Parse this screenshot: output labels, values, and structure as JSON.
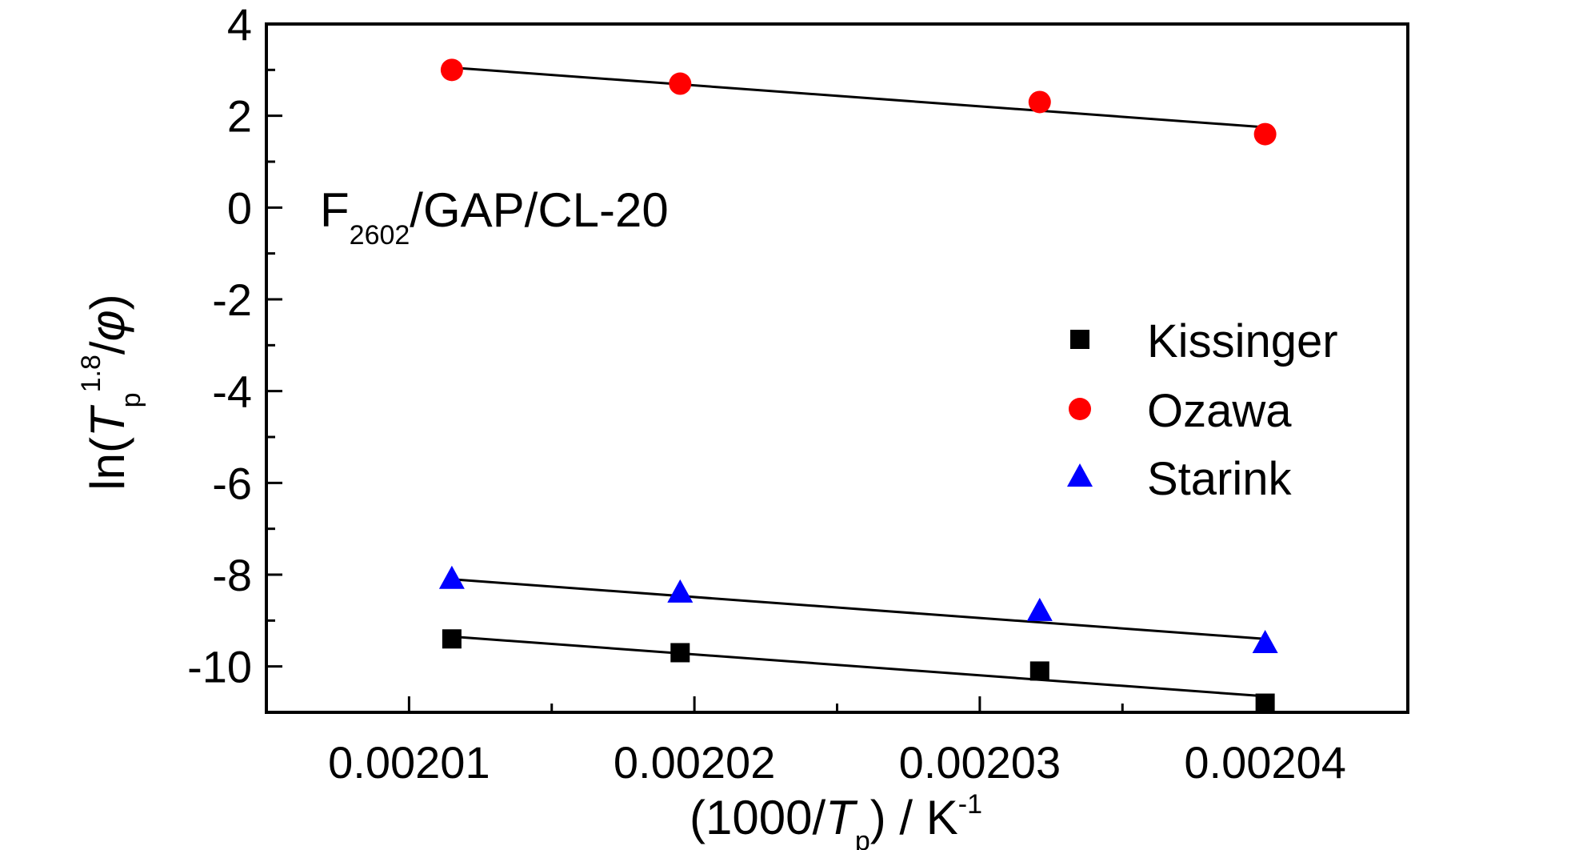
{
  "chart_data": {
    "type": "scatter",
    "annotation": {
      "main": "F",
      "sub": "2602",
      "rest": "/GAP/CL-20"
    },
    "xlabel": {
      "pre": "(1000/",
      "italic": "T",
      "sub": "p",
      "post": ") / K",
      "sup": "-1"
    },
    "ylabel": {
      "pre": "ln(",
      "italic": "T",
      "sub": "p",
      "sup": "1.8",
      "slash": "/",
      "phi": "φ",
      "post": ")"
    },
    "xlim": [
      0.002005,
      0.002045
    ],
    "ylim": [
      -11,
      4
    ],
    "x_ticks": [
      0.00201,
      0.00202,
      0.00203,
      0.00204
    ],
    "x_tick_labels": [
      "0.00201",
      "0.00202",
      "0.00203",
      "0.00204"
    ],
    "y_ticks": [
      -10,
      -8,
      -6,
      -4,
      -2,
      0,
      2,
      4
    ],
    "y_tick_labels": [
      "-10",
      "-8",
      "-6",
      "-4",
      "-2",
      "0",
      "2",
      "4"
    ],
    "grid": false,
    "legend_position": "right",
    "series": [
      {
        "name": "Kissinger",
        "marker": "square",
        "color": "#000000",
        "x": [
          0.0020115,
          0.0020195,
          0.0020321,
          0.00204
        ],
        "y": [
          -9.4,
          -9.7,
          -10.1,
          -10.8
        ],
        "fit": {
          "x": [
            0.0020115,
            0.00204
          ],
          "y": [
            -9.35,
            -10.65
          ]
        }
      },
      {
        "name": "Ozawa",
        "marker": "circle",
        "color": "#ff0000",
        "x": [
          0.0020115,
          0.0020195,
          0.0020321,
          0.00204
        ],
        "y": [
          3.0,
          2.7,
          2.3,
          1.6
        ],
        "fit": {
          "x": [
            0.0020115,
            0.00204
          ],
          "y": [
            3.05,
            1.75
          ]
        }
      },
      {
        "name": "Starink",
        "marker": "triangle",
        "color": "#0000ff",
        "x": [
          0.0020115,
          0.0020195,
          0.0020321,
          0.00204
        ],
        "y": [
          -8.1,
          -8.4,
          -8.8,
          -9.5
        ],
        "fit": {
          "x": [
            0.0020115,
            0.00204
          ],
          "y": [
            -8.1,
            -9.4
          ]
        }
      }
    ]
  }
}
